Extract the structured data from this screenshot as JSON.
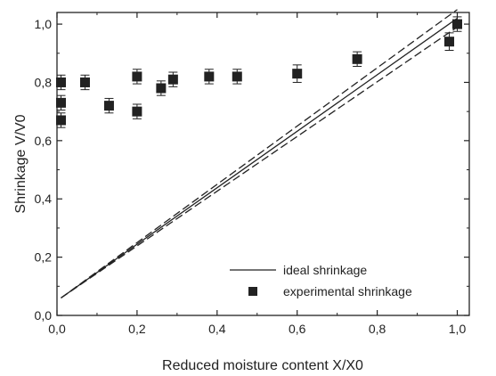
{
  "chart_data": {
    "type": "scatter",
    "xlabel": "Reduced moisture content X/X0",
    "ylabel": "Shrinkage V/V0",
    "xlim": [
      0.0,
      1.03
    ],
    "ylim": [
      0.0,
      1.04
    ],
    "xticks": [
      "0,0",
      "0,2",
      "0,4",
      "0,6",
      "0,8",
      "1,0"
    ],
    "yticks": [
      "0,0",
      "0,2",
      "0,4",
      "0,6",
      "0,8",
      "1,0"
    ],
    "xtick_values": [
      0.0,
      0.2,
      0.4,
      0.6,
      0.8,
      1.0
    ],
    "ytick_values": [
      0.0,
      0.2,
      0.4,
      0.6,
      0.8,
      1.0
    ],
    "grid": false,
    "legend_position": "bottom-right",
    "series": [
      {
        "name": "ideal shrinkage",
        "kind": "line",
        "style": "solid",
        "x": [
          0.01,
          1.0
        ],
        "y": [
          0.06,
          1.02
        ]
      },
      {
        "kind": "line",
        "style": "dashed",
        "x": [
          0.01,
          1.0
        ],
        "y": [
          0.06,
          1.05
        ]
      },
      {
        "kind": "line",
        "style": "dashed",
        "x": [
          0.01,
          1.0
        ],
        "y": [
          0.06,
          0.99
        ]
      },
      {
        "name": "experimental shrinkage",
        "kind": "scatter",
        "marker": "square",
        "x": [
          0.01,
          0.01,
          0.01,
          0.07,
          0.13,
          0.2,
          0.2,
          0.26,
          0.29,
          0.38,
          0.45,
          0.6,
          0.75,
          0.98,
          1.0
        ],
        "y": [
          0.8,
          0.73,
          0.67,
          0.8,
          0.72,
          0.82,
          0.7,
          0.78,
          0.81,
          0.82,
          0.82,
          0.83,
          0.88,
          0.94,
          1.0
        ],
        "yerr": [
          0.025,
          0.025,
          0.025,
          0.025,
          0.025,
          0.025,
          0.025,
          0.025,
          0.025,
          0.025,
          0.025,
          0.03,
          0.025,
          0.03,
          0.025
        ]
      }
    ],
    "colors": {
      "ink": "#222222",
      "background": "#ffffff"
    }
  }
}
